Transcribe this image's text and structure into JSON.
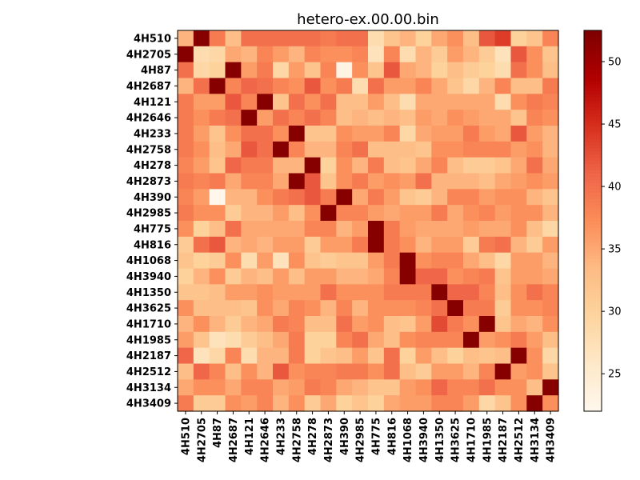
{
  "chart_data": {
    "type": "heatmap",
    "title": "hetero-ex.00.00.bin",
    "colormap": "OrRd",
    "labels": [
      "4H510",
      "4H2705",
      "4H87",
      "4H2687",
      "4H121",
      "4H2646",
      "4H233",
      "4H2758",
      "4H278",
      "4H2873",
      "4H390",
      "4H2985",
      "4H775",
      "4H816",
      "4H1068",
      "4H3940",
      "4H1350",
      "4H3625",
      "4H1710",
      "4H1985",
      "4H2187",
      "4H2512",
      "4H3134",
      "4H3409"
    ],
    "colorbar_ticks": [
      25,
      30,
      35,
      40,
      45,
      50
    ],
    "vmin": 22,
    "vmax": 52.5,
    "values": [
      [
        34,
        52,
        39,
        33,
        40,
        40,
        40,
        40,
        40,
        39,
        40,
        40,
        28,
        32,
        34,
        30,
        35,
        37,
        33,
        42,
        44,
        30,
        32,
        38
      ],
      [
        52,
        28,
        29,
        35,
        34,
        38,
        36,
        34,
        38,
        37,
        37,
        38,
        27,
        38,
        28,
        34,
        31,
        36,
        34,
        31,
        27,
        42,
        37,
        32
      ],
      [
        40,
        29,
        30,
        52,
        36,
        39,
        29,
        36,
        32,
        38,
        23,
        37,
        32,
        42,
        35,
        34,
        30,
        33,
        31,
        30,
        28,
        40,
        37,
        33
      ],
      [
        34,
        40,
        52,
        38,
        41,
        40,
        38,
        37,
        42,
        37,
        39,
        28,
        40,
        36,
        36,
        38,
        35,
        32,
        29,
        34,
        38,
        33,
        33,
        39
      ],
      [
        39,
        36,
        36,
        42,
        38,
        52,
        32,
        40,
        37,
        40,
        33,
        33,
        36,
        33,
        28,
        35,
        35,
        35,
        35,
        35,
        28,
        37,
        39,
        38
      ],
      [
        39,
        37,
        39,
        40,
        52,
        36,
        40,
        38,
        40,
        38,
        33,
        34,
        33,
        34,
        33,
        36,
        35,
        37,
        36,
        35,
        35,
        32,
        38,
        37
      ],
      [
        39,
        36,
        32,
        37,
        40,
        40,
        37,
        52,
        32,
        32,
        37,
        36,
        36,
        38,
        29,
        35,
        36,
        36,
        39,
        36,
        35,
        42,
        36,
        34
      ],
      [
        39,
        37,
        33,
        35,
        42,
        40,
        52,
        38,
        34,
        34,
        38,
        40,
        33,
        33,
        33,
        32,
        37,
        37,
        38,
        38,
        38,
        36,
        37,
        34
      ],
      [
        38,
        36,
        32,
        41,
        39,
        39,
        34,
        34,
        52,
        30,
        37,
        34,
        39,
        33,
        32,
        35,
        38,
        33,
        31,
        31,
        32,
        35,
        40,
        35
      ],
      [
        39,
        38,
        39,
        35,
        38,
        38,
        35,
        52,
        42,
        32,
        37,
        39,
        36,
        37,
        36,
        40,
        34,
        34,
        34,
        33,
        35,
        36,
        37,
        36
      ],
      [
        38,
        36,
        22,
        34,
        34,
        37,
        39,
        40,
        42,
        39,
        52,
        35,
        39,
        36,
        32,
        31,
        34,
        38,
        38,
        36,
        37,
        37,
        34,
        32
      ],
      [
        39,
        37,
        37,
        31,
        34,
        34,
        36,
        33,
        37,
        52,
        38,
        38,
        36,
        35,
        36,
        36,
        39,
        35,
        37,
        38,
        36,
        37,
        37,
        34
      ],
      [
        37,
        30,
        33,
        40,
        35,
        35,
        35,
        35,
        38,
        38,
        34,
        36,
        52,
        39,
        36,
        35,
        35,
        35,
        36,
        35,
        35,
        37,
        33,
        29
      ],
      [
        31,
        40,
        42,
        34,
        35,
        34,
        36,
        36,
        31,
        36,
        36,
        39,
        52,
        39,
        37,
        34,
        36,
        36,
        31,
        39,
        40,
        34,
        31,
        36
      ],
      [
        32,
        30,
        31,
        37,
        28,
        36,
        27,
        37,
        32,
        31,
        32,
        32,
        36,
        39,
        52,
        37,
        38,
        38,
        35,
        33,
        29,
        36,
        36,
        34
      ],
      [
        30,
        34,
        37,
        31,
        34,
        33,
        36,
        33,
        36,
        36,
        34,
        34,
        35,
        38,
        52,
        41,
        41,
        37,
        38,
        39,
        32,
        36,
        36,
        35
      ],
      [
        32,
        32,
        33,
        36,
        36,
        37,
        36,
        36,
        36,
        40,
        37,
        37,
        37,
        39,
        39,
        39,
        52,
        41,
        41,
        38,
        33,
        37,
        40,
        38
      ],
      [
        37,
        33,
        33,
        33,
        32,
        37,
        35,
        38,
        37,
        34,
        38,
        34,
        37,
        37,
        37,
        38,
        40,
        52,
        39,
        39,
        31,
        37,
        37,
        38
      ],
      [
        34,
        37,
        34,
        31,
        34,
        35,
        39,
        38,
        33,
        33,
        40,
        36,
        37,
        33,
        32,
        36,
        43,
        39,
        37,
        52,
        32,
        35,
        34,
        37
      ],
      [
        36,
        32,
        27,
        28,
        31,
        33,
        35,
        39,
        30,
        30,
        38,
        40,
        35,
        33,
        37,
        38,
        38,
        38,
        52,
        36,
        37,
        39,
        36,
        33
      ],
      [
        41,
        27,
        29,
        38,
        28,
        34,
        34,
        39,
        30,
        32,
        33,
        36,
        32,
        40,
        30,
        36,
        33,
        30,
        33,
        32,
        33,
        52,
        37,
        29
      ],
      [
        33,
        41,
        38,
        33,
        37,
        34,
        42,
        37,
        38,
        38,
        39,
        39,
        37,
        40,
        33,
        31,
        36,
        36,
        34,
        38,
        52,
        36,
        37,
        32
      ],
      [
        35,
        37,
        37,
        35,
        38,
        38,
        35,
        36,
        39,
        38,
        35,
        34,
        32,
        32,
        36,
        37,
        41,
        38,
        38,
        40,
        37,
        37,
        33,
        52
      ],
      [
        39,
        31,
        31,
        37,
        36,
        38,
        34,
        37,
        31,
        35,
        30,
        32,
        30,
        35,
        36,
        36,
        38,
        38,
        36,
        29,
        32,
        37,
        52,
        37
      ]
    ]
  }
}
